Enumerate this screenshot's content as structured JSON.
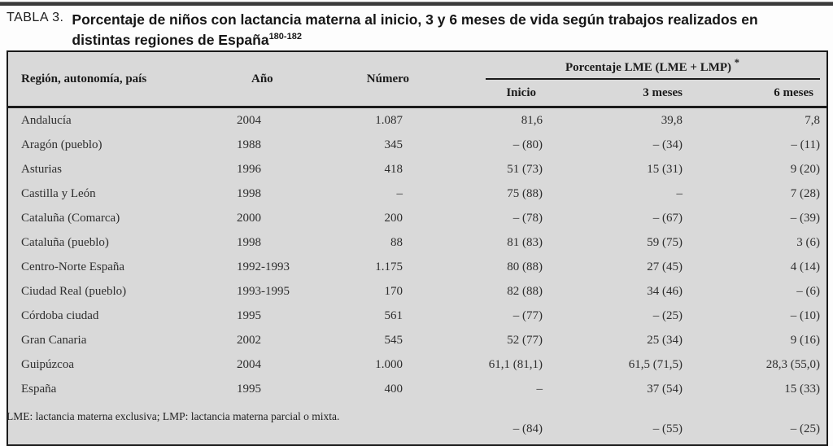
{
  "title": {
    "label": "TABLA 3.",
    "text": "Porcentaje de niños con lactancia materna al inicio, 3 y 6 meses de vida según trabajos realizados en distintas regiones de España",
    "superscript": "180-182"
  },
  "table": {
    "columns": {
      "region": "Región, autonomía, país",
      "year": "Año",
      "number": "Número"
    },
    "group_header": {
      "label": "Porcentaje LME (LME + LMP)",
      "superscript": "*",
      "subcolumns": {
        "inicio": "Inicio",
        "m3": "3 meses",
        "m6": "6 meses"
      }
    },
    "rows": [
      {
        "region": "Andalucía",
        "year": "2004",
        "number": "1.087",
        "inicio": "81,6",
        "m3": "39,8",
        "m6": "7,8"
      },
      {
        "region": "Aragón (pueblo)",
        "year": "1988",
        "number": "345",
        "inicio": "– (80)",
        "m3": "– (34)",
        "m6": "– (11)"
      },
      {
        "region": "Asturias",
        "year": "1996",
        "number": "418",
        "inicio": "51 (73)",
        "m3": "15 (31)",
        "m6": "9 (20)"
      },
      {
        "region": "Castilla y León",
        "year": "1998",
        "number": "–",
        "inicio": "75 (88)",
        "m3": "–",
        "m6": "7 (28)"
      },
      {
        "region": "Cataluña (Comarca)",
        "year": "2000",
        "number": "200",
        "inicio": "– (78)",
        "m3": "– (67)",
        "m6": "– (39)"
      },
      {
        "region": "Cataluña (pueblo)",
        "year": "1998",
        "number": "88",
        "inicio": "81 (83)",
        "m3": "59 (75)",
        "m6": "3 (6)"
      },
      {
        "region": "Centro-Norte España",
        "year": "1992-1993",
        "number": "1.175",
        "inicio": "80 (88)",
        "m3": "27 (45)",
        "m6": "4 (14)"
      },
      {
        "region": "Ciudad Real (pueblo)",
        "year": "1993-1995",
        "number": "170",
        "inicio": "82 (88)",
        "m3": "34 (46)",
        "m6": "– (6)"
      },
      {
        "region": "Córdoba ciudad",
        "year": "1995",
        "number": "561",
        "inicio": "– (77)",
        "m3": "– (25)",
        "m6": "– (10)"
      },
      {
        "region": "Gran Canaria",
        "year": "2002",
        "number": "545",
        "inicio": "52 (77)",
        "m3": "25 (34)",
        "m6": "9 (16)"
      },
      {
        "region": "Guipúzcoa",
        "year": "2004",
        "number": "1.000",
        "inicio": "61,1 (81,1)",
        "m3": "61,5 (71,5)",
        "m6": "28,3 (55,0)"
      },
      {
        "region": "España",
        "year": "1995",
        "number": "400",
        "inicio": "–",
        "m3": "37 (54)",
        "m6": "15 (33)"
      },
      {
        "region": "",
        "year": "",
        "number": "",
        "inicio": "– (84)",
        "m3": "– (55)",
        "m6": "– (25)"
      }
    ]
  },
  "footnote": "LME: lactancia materna exclusiva; LMP: lactancia materna parcial o mixta.",
  "colors": {
    "table_background": "#d9d9d9",
    "border": "#1b1b1b",
    "text": "#2e2e2e",
    "page_background": "#fdfdfd"
  }
}
